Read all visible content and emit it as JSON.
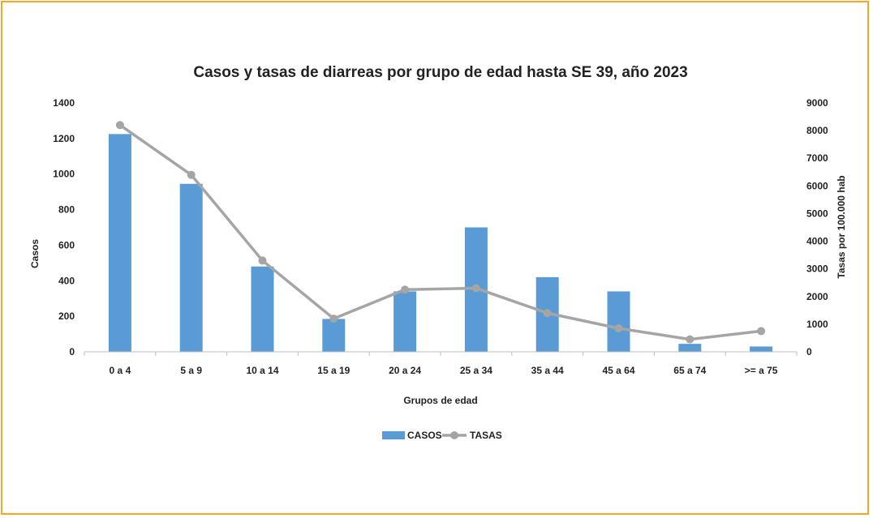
{
  "chart_data": {
    "type": "bar",
    "title": "Casos y tasas de diarreas por grupo de edad hasta SE 39, año 2023",
    "xlabel": "Grupos de edad",
    "ylabel": "Casos",
    "y2label": "Tasas por 100.000 hab",
    "categories": [
      "0 a 4",
      "5 a 9",
      "10 a 14",
      "15 a 19",
      "20 a 24",
      "25 a 34",
      "35 a 44",
      "45 a 64",
      "65 a 74",
      ">= a 75"
    ],
    "ylim": [
      0,
      1400
    ],
    "y2lim": [
      0,
      9000
    ],
    "yticks": [
      "0",
      "200",
      "400",
      "600",
      "800",
      "1000",
      "1200",
      "1400"
    ],
    "y2ticks": [
      "0",
      "1000",
      "2000",
      "3000",
      "4000",
      "5000",
      "6000",
      "7000",
      "8000",
      "9000"
    ],
    "series": [
      {
        "name": "CASOS",
        "type": "bar",
        "axis": "left",
        "color": "#5b9bd5",
        "values": [
          1225,
          945,
          480,
          185,
          340,
          700,
          420,
          340,
          45,
          30
        ]
      },
      {
        "name": "TASAS",
        "type": "line",
        "axis": "right",
        "color": "#a5a5a5",
        "values": [
          8200,
          6400,
          3300,
          1200,
          2250,
          2300,
          1400,
          850,
          450,
          750
        ]
      }
    ],
    "grid": false,
    "legend": "bottom-center"
  }
}
